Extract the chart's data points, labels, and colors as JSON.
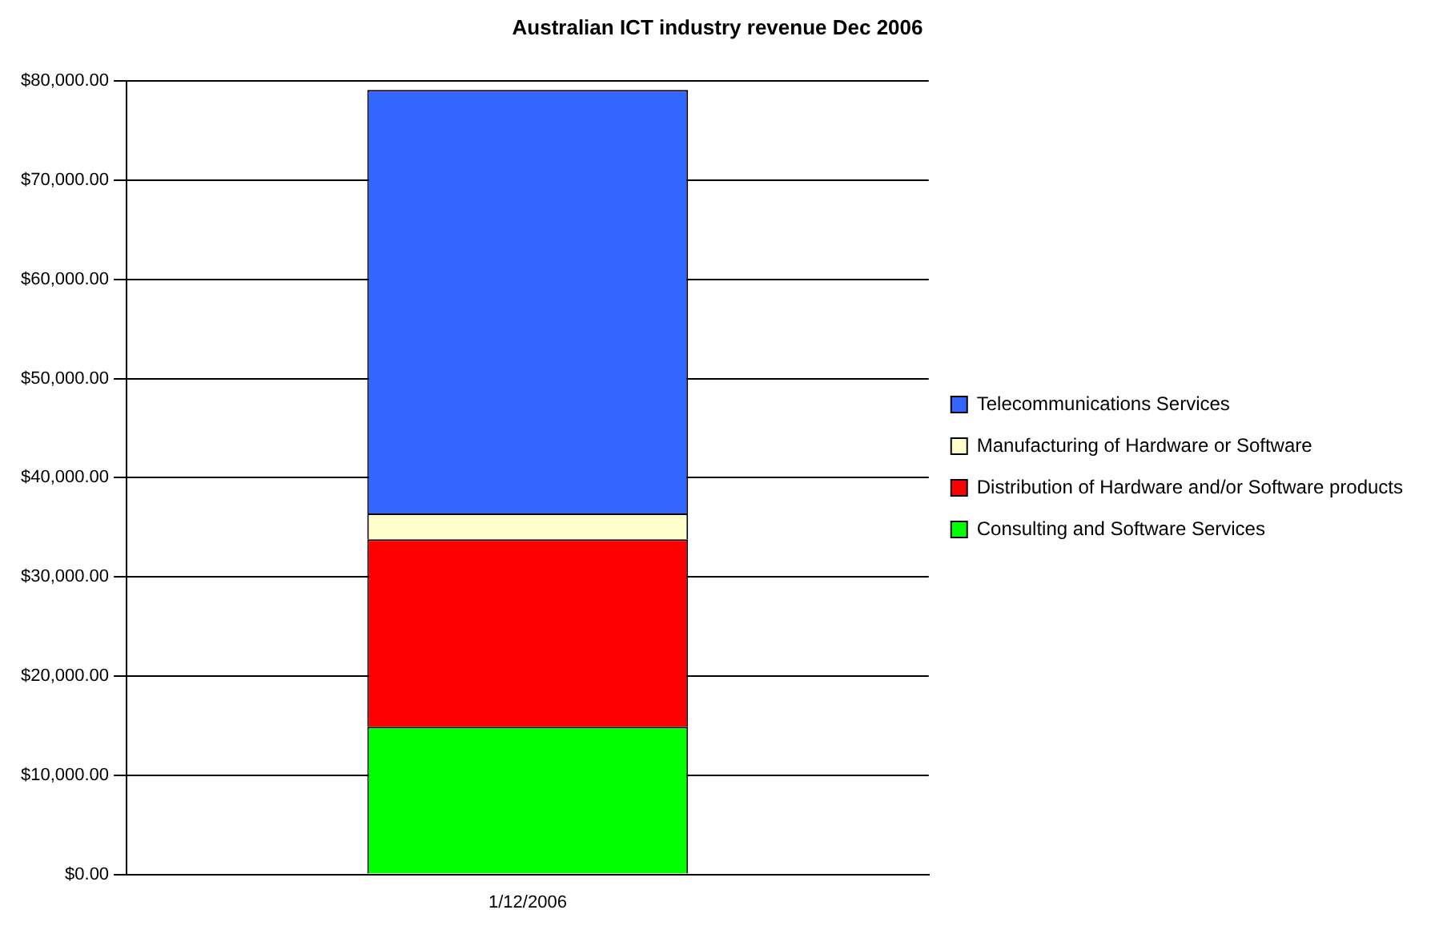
{
  "chart_data": {
    "type": "bar",
    "title": "Australian ICT industry revenue Dec 2006",
    "categories": [
      "1/12/2006"
    ],
    "stacked": true,
    "legend": "right",
    "grid": "y",
    "ylim": [
      0,
      80000
    ],
    "yticks": [
      {
        "value": 0,
        "label": "$0.00"
      },
      {
        "value": 10000,
        "label": "$10,000.00"
      },
      {
        "value": 20000,
        "label": "$20,000.00"
      },
      {
        "value": 30000,
        "label": "$30,000.00"
      },
      {
        "value": 40000,
        "label": "$40,000.00"
      },
      {
        "value": 50000,
        "label": "$50,000.00"
      },
      {
        "value": 60000,
        "label": "$60,000.00"
      },
      {
        "value": 70000,
        "label": "$70,000.00"
      },
      {
        "value": 80000,
        "label": "$80,000.00"
      }
    ],
    "series": [
      {
        "name": "Consulting and Software Services",
        "color": "#00ff00",
        "values": [
          14900
        ]
      },
      {
        "name": "Distribution of Hardware and/or Software products",
        "color": "#ff0000",
        "values": [
          18900
        ]
      },
      {
        "name": "Manufacturing of Hardware or Software",
        "color": "#ffffcc",
        "values": [
          2600
        ]
      },
      {
        "name": "Telecommunications Services",
        "color": "#3366ff",
        "values": [
          42700
        ]
      }
    ]
  }
}
